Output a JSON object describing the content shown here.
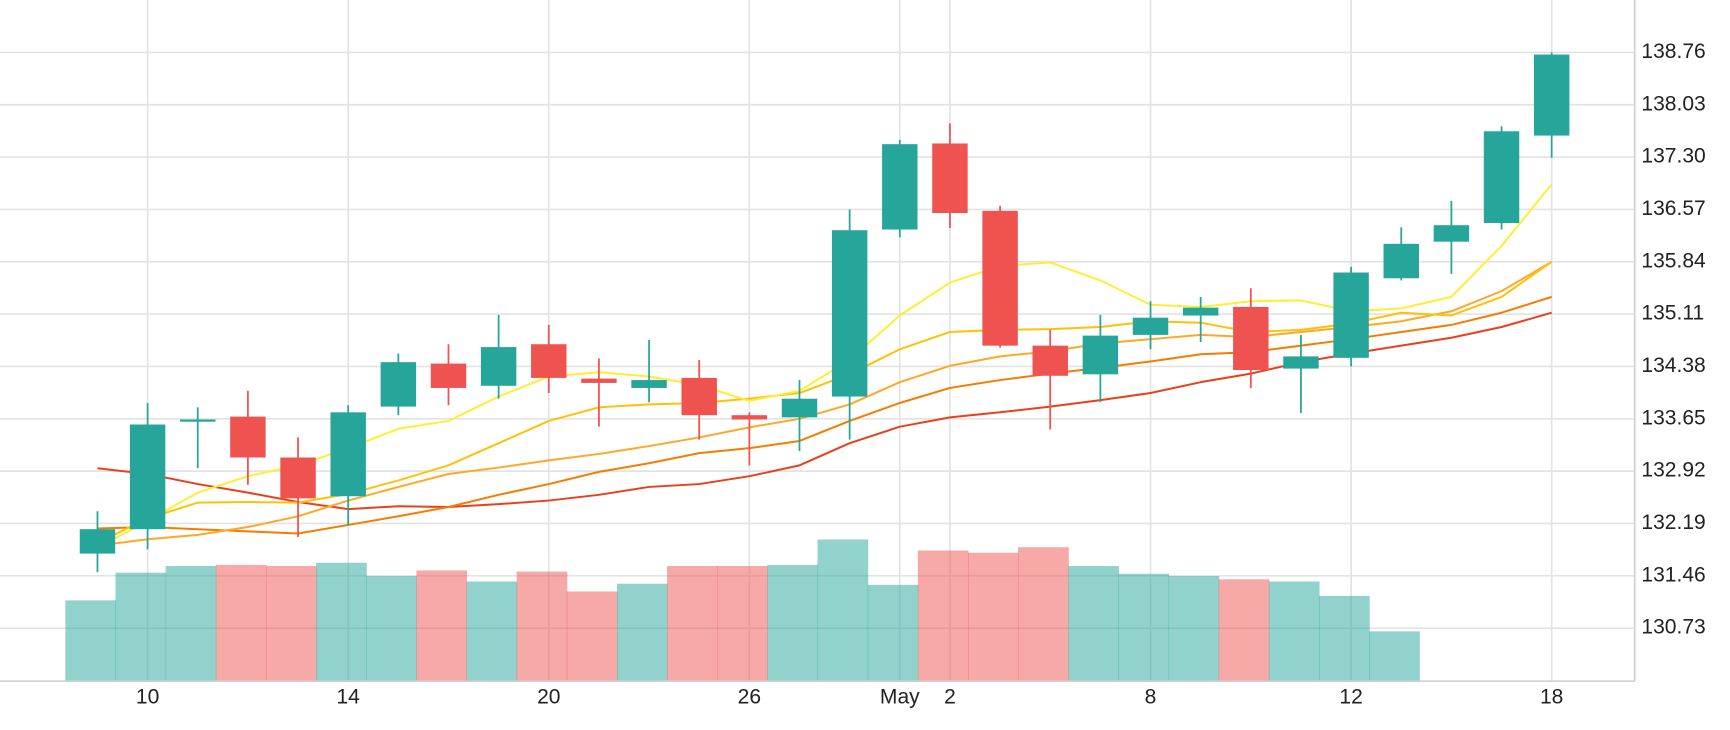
{
  "chart_data": {
    "type": "candlestick",
    "categories": [
      null,
      "10",
      null,
      null,
      null,
      "14",
      null,
      null,
      null,
      "20",
      null,
      null,
      null,
      "26",
      null,
      null,
      "May",
      "2",
      null,
      null,
      null,
      "8",
      null,
      null,
      null,
      "12",
      null,
      null,
      null,
      "18"
    ],
    "open": [
      131.77,
      132.11,
      133.61,
      133.68,
      133.11,
      132.57,
      133.82,
      134.42,
      134.11,
      134.69,
      134.21,
      134.08,
      134.22,
      133.7,
      133.67,
      133.96,
      136.29,
      137.49,
      136.55,
      134.67,
      134.27,
      134.82,
      135.09,
      135.21,
      134.35,
      134.5,
      135.61,
      136.12,
      136.38,
      137.6
    ],
    "high": [
      132.36,
      133.87,
      133.81,
      134.04,
      133.39,
      133.84,
      134.56,
      134.69,
      135.1,
      134.96,
      134.49,
      134.75,
      134.47,
      133.74,
      134.19,
      136.57,
      137.54,
      137.77,
      136.62,
      134.89,
      135.1,
      135.29,
      135.35,
      135.47,
      134.82,
      135.77,
      136.32,
      136.69,
      137.73,
      138.76
    ],
    "low": [
      131.51,
      131.83,
      132.96,
      132.73,
      132.0,
      132.17,
      133.7,
      133.84,
      133.93,
      134.01,
      133.54,
      133.88,
      133.36,
      133.0,
      133.2,
      133.36,
      136.18,
      136.31,
      134.64,
      133.5,
      133.88,
      134.62,
      134.72,
      134.08,
      133.73,
      134.38,
      135.58,
      135.67,
      136.29,
      137.29
    ],
    "close": [
      132.11,
      133.57,
      133.64,
      133.11,
      132.54,
      133.74,
      134.44,
      134.08,
      134.65,
      134.22,
      134.15,
      134.19,
      133.7,
      133.64,
      133.93,
      136.28,
      137.48,
      136.52,
      134.67,
      134.25,
      134.81,
      135.06,
      135.2,
      134.33,
      134.52,
      135.69,
      136.09,
      136.35,
      137.66,
      138.73
    ],
    "up_color": "#26a69a",
    "down_color": "#ef5350",
    "volume": [
      73,
      98,
      104,
      105,
      104,
      107,
      95,
      100,
      90,
      99,
      81,
      88,
      104,
      104,
      105,
      128,
      87,
      118,
      116,
      121,
      104,
      97,
      95,
      92,
      90,
      77,
      45,
      null,
      null,
      null
    ],
    "series": [
      {
        "color": "#e8401c",
        "values": [
          132.96,
          132.88,
          132.74,
          132.62,
          132.49,
          132.39,
          132.43,
          132.42,
          132.46,
          132.51,
          132.59,
          132.7,
          132.74,
          132.85,
          133.0,
          133.31,
          133.54,
          133.67,
          133.74,
          133.82,
          133.91,
          134.01,
          134.16,
          134.28,
          134.44,
          134.56,
          134.67,
          134.78,
          134.93,
          135.13
        ]
      },
      {
        "color": "#f57c00",
        "values": [
          132.12,
          132.14,
          132.11,
          132.08,
          132.05,
          132.17,
          132.29,
          132.42,
          132.59,
          132.74,
          132.91,
          133.03,
          133.17,
          133.24,
          133.34,
          133.62,
          133.87,
          134.08,
          134.19,
          134.28,
          134.36,
          134.45,
          134.55,
          134.58,
          134.67,
          134.76,
          134.86,
          134.96,
          135.13,
          135.35
        ]
      },
      {
        "color": "#ffa726",
        "values": [
          131.88,
          131.97,
          132.03,
          132.14,
          132.29,
          132.51,
          132.7,
          132.88,
          132.97,
          133.07,
          133.16,
          133.27,
          133.39,
          133.53,
          133.65,
          133.85,
          134.16,
          134.39,
          134.52,
          134.59,
          134.7,
          134.76,
          134.82,
          134.79,
          134.86,
          134.93,
          135.01,
          135.15,
          135.43,
          135.84
        ]
      },
      {
        "color": "#ffc107",
        "values": [
          131.92,
          132.26,
          132.48,
          132.49,
          132.48,
          132.6,
          132.79,
          133.0,
          133.31,
          133.62,
          133.81,
          133.85,
          133.87,
          133.93,
          134.01,
          134.27,
          134.62,
          134.86,
          134.89,
          134.9,
          134.93,
          135.01,
          134.99,
          134.86,
          134.89,
          134.98,
          135.13,
          135.09,
          135.35,
          135.84
        ]
      },
      {
        "color": "#ffee33",
        "values": [
          131.85,
          132.23,
          132.62,
          132.85,
          133.0,
          133.24,
          133.51,
          133.62,
          133.96,
          134.24,
          134.3,
          134.24,
          134.12,
          133.9,
          134.04,
          134.47,
          135.09,
          135.55,
          135.78,
          135.83,
          135.58,
          135.24,
          135.21,
          135.29,
          135.3,
          135.15,
          135.19,
          135.35,
          136.06,
          136.92
        ]
      }
    ],
    "ylim": [
      129.99,
      139.49
    ],
    "yticks": [
      130.73,
      131.46,
      132.19,
      132.92,
      133.65,
      134.38,
      135.11,
      135.84,
      136.57,
      {
        "value": 137.3,
        "label": "137.30"
      },
      138.03,
      138.76
    ],
    "grid": true
  }
}
